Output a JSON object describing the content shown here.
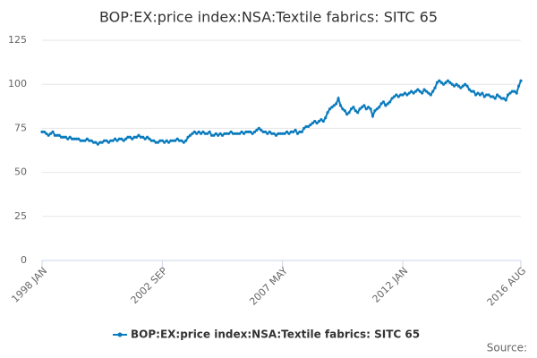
{
  "chart_data": {
    "type": "line",
    "title": "BOP:EX:price index:NSA:Textile fabrics: SITC 65",
    "source": "Source:",
    "categories": [
      "1998 JAN",
      null,
      null,
      null,
      null,
      null,
      null,
      null,
      null,
      null,
      null,
      null,
      null,
      null,
      null,
      null,
      null,
      null,
      null,
      null,
      null,
      null,
      null,
      null,
      null,
      null,
      null,
      null,
      null,
      null,
      null,
      null,
      null,
      null,
      null,
      null,
      null,
      null,
      null,
      null,
      null,
      null,
      null,
      null,
      null,
      null,
      null,
      null,
      null,
      null,
      null,
      null,
      null,
      null,
      null,
      null,
      "2002 SEP",
      null,
      null,
      null,
      null,
      null,
      null,
      null,
      null,
      null,
      null,
      null,
      null,
      null,
      null,
      null,
      null,
      null,
      null,
      null,
      null,
      null,
      null,
      null,
      null,
      null,
      null,
      null,
      null,
      null,
      null,
      null,
      null,
      null,
      null,
      null,
      null,
      null,
      null,
      null,
      null,
      null,
      null,
      null,
      null,
      null,
      null,
      null,
      null,
      null,
      null,
      null,
      null,
      null,
      null,
      null,
      "2007 MAY",
      null,
      null,
      null,
      null,
      null,
      null,
      null,
      null,
      null,
      null,
      null,
      null,
      null,
      null,
      null,
      null,
      null,
      null,
      null,
      null,
      null,
      null,
      null,
      null,
      null,
      null,
      null,
      null,
      null,
      null,
      null,
      null,
      null,
      null,
      null,
      null,
      null,
      null,
      null,
      null,
      null,
      null,
      null,
      null,
      null,
      null,
      null,
      null,
      null,
      null,
      null,
      null,
      null,
      null,
      null,
      "2012 JAN",
      null,
      null,
      null,
      null,
      null,
      null,
      null,
      null,
      null,
      null,
      null,
      null,
      null,
      null,
      null,
      null,
      null,
      null,
      null,
      null,
      null,
      null,
      null,
      null,
      null,
      null,
      null,
      null,
      null,
      null,
      null,
      null,
      null,
      null,
      null,
      null,
      null,
      null,
      null,
      null,
      null,
      null,
      null,
      null,
      null,
      null,
      null,
      null,
      null,
      null,
      null,
      null,
      null,
      null,
      "2016 AUG"
    ],
    "series": [
      {
        "name": "BOP:EX:price index:NSA:Textile fabrics: SITC 65",
        "color": "#0a7bbd",
        "values": [
          73,
          73,
          72,
          71,
          72,
          73,
          71,
          71,
          71,
          70,
          70,
          70,
          69,
          70,
          69,
          69,
          69,
          69,
          68,
          68,
          68,
          69,
          68,
          68,
          67,
          67,
          66,
          67,
          67,
          68,
          68,
          67,
          68,
          68,
          69,
          68,
          69,
          69,
          68,
          69,
          70,
          70,
          69,
          70,
          70,
          71,
          70,
          70,
          69,
          70,
          69,
          68,
          68,
          67,
          67,
          68,
          68,
          67,
          68,
          67,
          68,
          68,
          68,
          69,
          68,
          68,
          67,
          68,
          70,
          71,
          72,
          73,
          72,
          73,
          72,
          73,
          72,
          72,
          73,
          71,
          71,
          72,
          71,
          72,
          71,
          72,
          72,
          72,
          73,
          72,
          72,
          72,
          72,
          73,
          72,
          73,
          73,
          73,
          72,
          73,
          74,
          75,
          74,
          73,
          73,
          72,
          73,
          72,
          72,
          71,
          72,
          72,
          72,
          72,
          73,
          72,
          73,
          73,
          74,
          72,
          73,
          73,
          75,
          76,
          76,
          77,
          78,
          79,
          78,
          79,
          80,
          79,
          81,
          84,
          86,
          87,
          88,
          89,
          92,
          88,
          86,
          85,
          83,
          84,
          86,
          87,
          85,
          84,
          86,
          87,
          88,
          86,
          87,
          86,
          82,
          85,
          86,
          87,
          89,
          90,
          88,
          89,
          90,
          92,
          93,
          94,
          93,
          94,
          94,
          95,
          94,
          95,
          96,
          95,
          96,
          97,
          96,
          95,
          97,
          96,
          95,
          94,
          96,
          98,
          101,
          102,
          101,
          100,
          101,
          102,
          101,
          100,
          99,
          100,
          99,
          98,
          99,
          100,
          99,
          97,
          96,
          96,
          94,
          95,
          94,
          95,
          93,
          94,
          94,
          93,
          93,
          92,
          94,
          93,
          92,
          92,
          91,
          94,
          95,
          96,
          96,
          95,
          99,
          102
        ]
      }
    ],
    "ylim": [
      0,
      125
    ],
    "yticks": [
      0,
      25,
      50,
      75,
      100,
      125
    ],
    "grid": true,
    "legend": "bottom"
  }
}
